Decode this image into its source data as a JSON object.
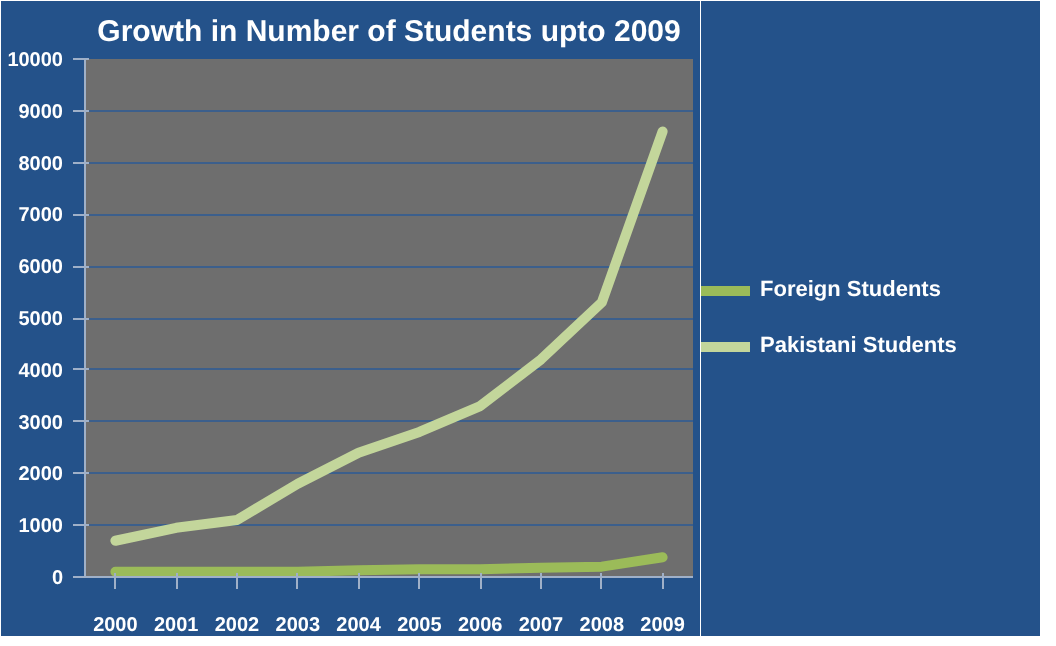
{
  "chart_data": {
    "type": "line",
    "title": "Growth in Number of Students upto 2009",
    "categories": [
      "2000",
      "2001",
      "2002",
      "2003",
      "2004",
      "2005",
      "2006",
      "2007",
      "2008",
      "2009"
    ],
    "series": [
      {
        "name": "Foreign Students",
        "color": "#9bbb59",
        "values": [
          100,
          100,
          100,
          100,
          130,
          150,
          150,
          180,
          200,
          380
        ]
      },
      {
        "name": "Pakistani Students",
        "color": "#c3d69b",
        "values": [
          700,
          950,
          1100,
          1800,
          2400,
          2800,
          3300,
          4200,
          5300,
          8600
        ]
      }
    ],
    "ylim": [
      0,
      10000
    ],
    "yticks": [
      0,
      1000,
      2000,
      3000,
      4000,
      5000,
      6000,
      7000,
      8000,
      9000,
      10000
    ],
    "grid": "y",
    "legend": "right",
    "line_style": "solid"
  }
}
